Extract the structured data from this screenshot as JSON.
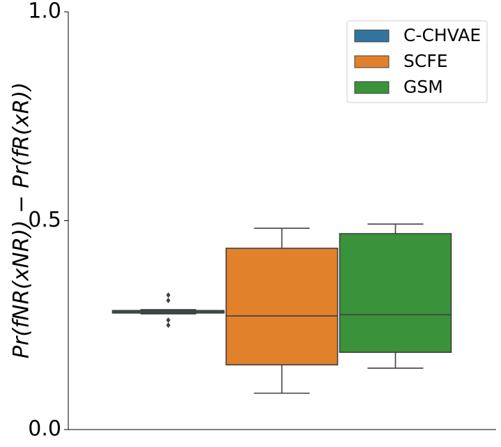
{
  "chart_data": {
    "type": "box",
    "ylabel": "Pr(fNR(xNR)) − Pr(fR(xR))",
    "ylim": [
      0,
      1
    ],
    "yticks": [
      {
        "value": 0,
        "label": "0.0"
      },
      0.5,
      {
        "value": 1,
        "label": "1.0"
      }
    ],
    "legend": "upper right",
    "series": [
      {
        "name": "C-CHVAE",
        "color": "#3274a1",
        "whislo": 0.277,
        "q1": 0.279,
        "median": 0.282,
        "q3": 0.285,
        "whishi": 0.287,
        "fliers": [
          0.322,
          0.309,
          0.262,
          0.25
        ]
      },
      {
        "name": "SCFE",
        "color": "#e1812c",
        "whislo": 0.087,
        "q1": 0.155,
        "median": 0.272,
        "q3": 0.434,
        "whishi": 0.482,
        "fliers": []
      },
      {
        "name": "GSM",
        "color": "#3a923a",
        "whislo": 0.147,
        "q1": 0.185,
        "median": 0.275,
        "q3": 0.469,
        "whishi": 0.492,
        "fliers": []
      }
    ]
  }
}
